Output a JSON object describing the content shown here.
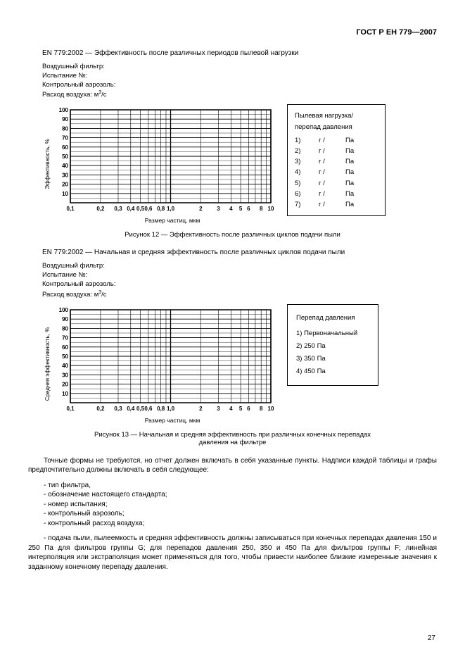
{
  "header": {
    "standard": "ГОСТ Р ЕН 779—2007"
  },
  "fig12": {
    "title": "EN 779:2002 — Эффективность после различных периодов пылевой нагрузки",
    "meta": {
      "l1": "Воздушный фильтр:",
      "l2": "Испытание №:",
      "l3": "Контрольный аэрозоль:",
      "l4_prefix": "Расход воздуха: м",
      "l4_sup": "3",
      "l4_suffix": "/с"
    },
    "chart": {
      "y_label": "Эффективность, %",
      "x_label": "Размер частиц, мкм",
      "y_ticks": [
        "10",
        "20",
        "30",
        "40",
        "50",
        "60",
        "70",
        "80",
        "90",
        "100"
      ],
      "x_ticks": [
        "0,1",
        "0,2",
        "0,3",
        "0,4",
        "0,5",
        "0,6",
        "0,8",
        "1,0",
        "2",
        "3",
        "4",
        "5",
        "6",
        "8",
        "10"
      ],
      "grid_color": "#000000",
      "bg": "#ffffff"
    },
    "legend": {
      "title": "Пылевая нагрузка/\nперепад давления",
      "rows": [
        {
          "n": "1)",
          "u": "г /",
          "p": "Па"
        },
        {
          "n": "2)",
          "u": "г /",
          "p": "Па"
        },
        {
          "n": "3)",
          "u": "г /",
          "p": "Па"
        },
        {
          "n": "4)",
          "u": "г /",
          "p": "Па"
        },
        {
          "n": "5)",
          "u": "г /",
          "p": "Па"
        },
        {
          "n": "6)",
          "u": "г /",
          "p": "Па"
        },
        {
          "n": "7)",
          "u": "г /",
          "p": "Па"
        }
      ]
    },
    "caption": "Рисунок 12 — Эффективность после различных циклов подачи пыли"
  },
  "fig13": {
    "title": "EN 779:2002 — Начальная и средняя эффективность после различных циклов подачи пыли",
    "meta": {
      "l1": "Воздушный фильтр:",
      "l2": "Испытание №:",
      "l3": "Контрольный аэрозоль:",
      "l4_prefix": "Расход воздуха: м",
      "l4_sup": "3",
      "l4_suffix": "/с"
    },
    "chart": {
      "y_label": "Средняя эффективность, %",
      "x_label": "Размер частиц, мкм",
      "y_ticks": [
        "10",
        "20",
        "30",
        "40",
        "50",
        "60",
        "70",
        "80",
        "90",
        "100"
      ],
      "x_ticks": [
        "0,1",
        "0,2",
        "0,3",
        "0,4",
        "0,5",
        "0,6",
        "0,8",
        "1,0",
        "2",
        "3",
        "4",
        "5",
        "6",
        "8",
        "10"
      ],
      "grid_color": "#000000",
      "bg": "#ffffff"
    },
    "legend": {
      "title": "Перепад давления",
      "rows": [
        {
          "t": "1) Первоначальный"
        },
        {
          "t": "2) 250 Па"
        },
        {
          "t": "3) 350 Па"
        },
        {
          "t": "4) 450 Па"
        }
      ]
    },
    "caption": "Рисунок 13 — Начальная и средняя эффективность при различных конечных перепадах\nдавления на фильтре"
  },
  "body": {
    "p1": "Точные формы не требуются, но отчет должен включать в себя указанные пункты. Надписи каждой таблицы и графы предпочтительно должны включать в себя следующее:",
    "items": [
      "- тип фильтра,",
      "- обозначение настоящего стандарта;",
      "- номер испытания;",
      "- контрольный аэрозоль;",
      "- контрольный расход воздуха;"
    ],
    "p2": "- подача пыли, пылеемкость и средняя эффективность должны записываться при конечных перепадах давления 150 и 250 Па для фильтров группы G; для перепадов давления 250, 350 и 450 Па для фильтров группы F; линейная интерполяция или экстраполяция может применяться для того, чтобы привести наиболее близкие измеренные значения к заданному конечному перепаду давления."
  },
  "page_number": "27"
}
